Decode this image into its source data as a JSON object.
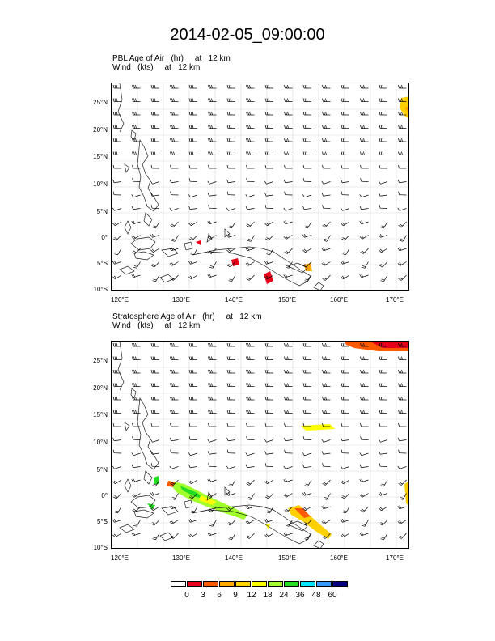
{
  "title": "2014-02-05_09:00:00",
  "panels": [
    {
      "label_line1": "PBL Age of Air   (hr)     at   12 km",
      "label_line2": "Wind   (kts)     at   12 km"
    },
    {
      "label_line1": "Stratosphere Age of Air   (hr)     at   12 km",
      "label_line2": "Wind   (kts)     at   12 km"
    }
  ],
  "lat_labels": [
    "25°N",
    "20°N",
    "15°N",
    "10°N",
    "5°N",
    "0°",
    "5°S",
    "10°S"
  ],
  "lon_labels": [
    "120°E",
    "130°E",
    "140°E",
    "150°E",
    "160°E",
    "170°E"
  ],
  "colorbar": {
    "labels": [
      "0",
      "3",
      "6",
      "9",
      "12",
      "18",
      "24",
      "36",
      "48",
      "60"
    ],
    "colors": [
      "#ffffff",
      "#e8001a",
      "#ff5a00",
      "#ffa600",
      "#ffd000",
      "#ffff00",
      "#a0ff2a",
      "#22dd22",
      "#00e6ff",
      "#3399ff",
      "#000080"
    ]
  }
}
